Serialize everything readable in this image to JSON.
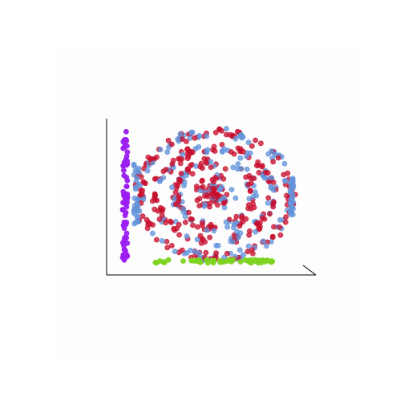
{
  "chart_data": {
    "type": "scatter",
    "projection": "3d",
    "title": "",
    "xlabel": "",
    "ylabel": "",
    "zlabel": "",
    "grid": false,
    "legend": "none",
    "colors": {
      "background": "#ffffff",
      "pane": "#fdfdfd",
      "axis": "#000000",
      "red": "#c8102e",
      "blue": "#6495dc",
      "purple": "#9b1ef0",
      "green": "#7ed321"
    },
    "shape": "concentric rings with a central star-shaped cluster; purple points projected on the left wall, green points projected on the floor",
    "approx_point_counts": {
      "red": 460,
      "blue": 240,
      "purple": 70,
      "green": 60
    }
  }
}
